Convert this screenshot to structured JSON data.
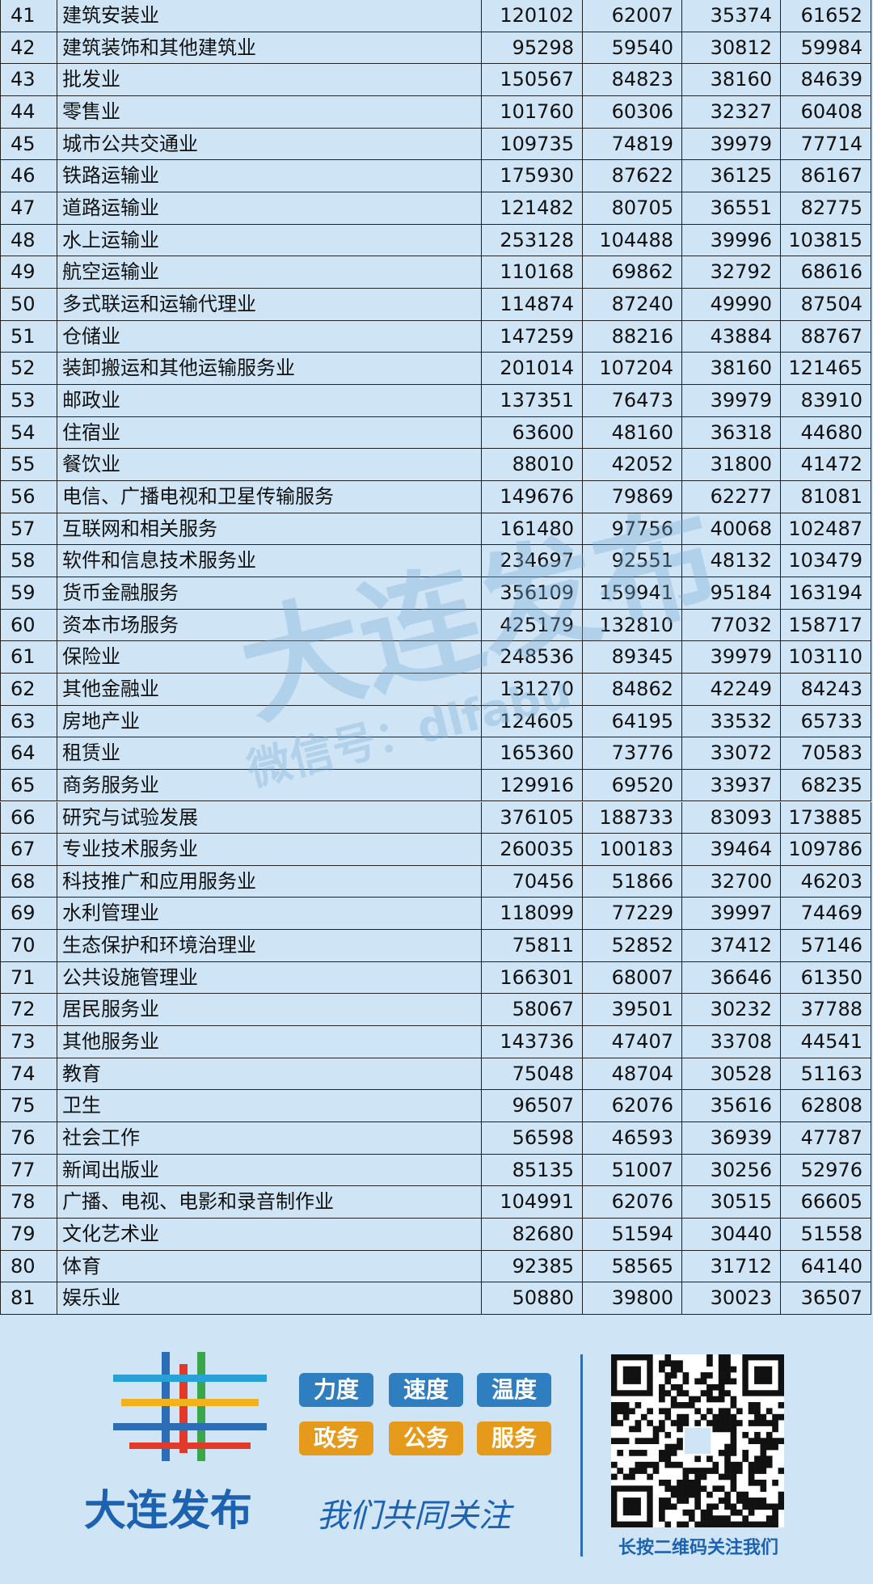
{
  "table": {
    "rows": [
      [
        41,
        "建筑安装业",
        120102,
        62007,
        35374,
        61652
      ],
      [
        42,
        "建筑装饰和其他建筑业",
        95298,
        59540,
        30812,
        59984
      ],
      [
        43,
        "批发业",
        150567,
        84823,
        38160,
        84639
      ],
      [
        44,
        "零售业",
        101760,
        60306,
        32327,
        60408
      ],
      [
        45,
        "城市公共交通业",
        109735,
        74819,
        39979,
        77714
      ],
      [
        46,
        "铁路运输业",
        175930,
        87622,
        36125,
        86167
      ],
      [
        47,
        "道路运输业",
        121482,
        80705,
        36551,
        82775
      ],
      [
        48,
        "水上运输业",
        253128,
        104488,
        39996,
        103815
      ],
      [
        49,
        "航空运输业",
        110168,
        69862,
        32792,
        68616
      ],
      [
        50,
        "多式联运和运输代理业",
        114874,
        87240,
        49990,
        87504
      ],
      [
        51,
        "仓储业",
        147259,
        88216,
        43884,
        88767
      ],
      [
        52,
        "装卸搬运和其他运输服务业",
        201014,
        107204,
        38160,
        121465
      ],
      [
        53,
        "邮政业",
        137351,
        76473,
        39979,
        83910
      ],
      [
        54,
        "住宿业",
        63600,
        48160,
        36318,
        44680
      ],
      [
        55,
        "餐饮业",
        88010,
        42052,
        31800,
        41472
      ],
      [
        56,
        "电信、广播电视和卫星传输服务",
        149676,
        79869,
        62277,
        81081
      ],
      [
        57,
        "互联网和相关服务",
        161480,
        97756,
        40068,
        102487
      ],
      [
        58,
        "软件和信息技术服务业",
        234697,
        92551,
        48132,
        103479
      ],
      [
        59,
        "货币金融服务",
        356109,
        159941,
        95184,
        163194
      ],
      [
        60,
        "资本市场服务",
        425179,
        132810,
        77032,
        158717
      ],
      [
        61,
        "保险业",
        248536,
        89345,
        39979,
        103110
      ],
      [
        62,
        "其他金融业",
        131270,
        84862,
        42249,
        84243
      ],
      [
        63,
        "房地产业",
        124605,
        64195,
        33532,
        65733
      ],
      [
        64,
        "租赁业",
        165360,
        73776,
        33072,
        70583
      ],
      [
        65,
        "商务服务业",
        129916,
        69520,
        33937,
        68235
      ],
      [
        66,
        "研究与试验发展",
        376105,
        188733,
        83093,
        173885
      ],
      [
        67,
        "专业技术服务业",
        260035,
        100183,
        39464,
        109786
      ],
      [
        68,
        "科技推广和应用服务业",
        70456,
        51866,
        32700,
        46203
      ],
      [
        69,
        "水利管理业",
        118099,
        77229,
        39997,
        74469
      ],
      [
        70,
        "生态保护和环境治理业",
        75811,
        52852,
        37412,
        57146
      ],
      [
        71,
        "公共设施管理业",
        166301,
        68007,
        36646,
        61350
      ],
      [
        72,
        "居民服务业",
        58067,
        39501,
        30232,
        37788
      ],
      [
        73,
        "其他服务业",
        143736,
        47407,
        33708,
        44541
      ],
      [
        74,
        "教育",
        75048,
        48704,
        30528,
        51163
      ],
      [
        75,
        "卫生",
        96507,
        62076,
        35616,
        62808
      ],
      [
        76,
        "社会工作",
        56598,
        46593,
        36939,
        47787
      ],
      [
        77,
        "新闻出版业",
        85135,
        51007,
        30256,
        52976
      ],
      [
        78,
        "广播、电视、电影和录音制作业",
        104991,
        62076,
        30515,
        66605
      ],
      [
        79,
        "文化艺术业",
        82680,
        51594,
        30440,
        51558
      ],
      [
        80,
        "体育",
        92385,
        58565,
        31712,
        64140
      ],
      [
        81,
        "娱乐业",
        50880,
        39800,
        30023,
        36507
      ]
    ]
  },
  "watermark": {
    "name": "大连发布",
    "account": "微信号：dlfabu"
  },
  "footer": {
    "brand": "大连发布",
    "tags_row1": [
      "力度",
      "速度",
      "温度"
    ],
    "tags_row2": [
      "政务",
      "公务",
      "服务"
    ],
    "slogan": "我们共同关注",
    "qr_caption": "长按二维码关注我们"
  }
}
